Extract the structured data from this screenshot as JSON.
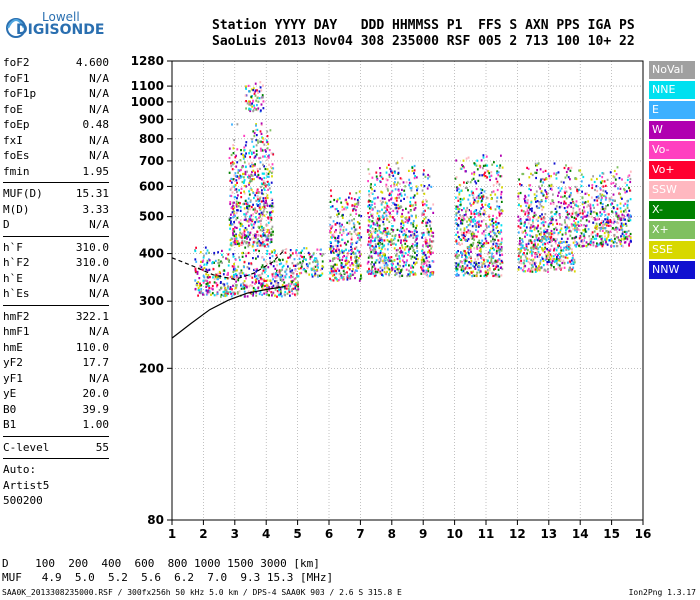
{
  "logo": {
    "line1": "Lowell",
    "line2": "DIGISONDE"
  },
  "header": {
    "line1": "Station YYYY DAY   DDD HHMMSS P1  FFS S AXN PPS IGA PS",
    "line2": "SaoLuis 2013 Nov04 308 235000 RSF 005 2 713 100 10+ 22"
  },
  "params": [
    {
      "label": "foF2",
      "value": "4.600"
    },
    {
      "label": "foF1",
      "value": "N/A"
    },
    {
      "label": "foF1p",
      "value": "N/A"
    },
    {
      "label": "foE",
      "value": "N/A"
    },
    {
      "label": "foEp",
      "value": "0.48"
    },
    {
      "label": "fxI",
      "value": "N/A"
    },
    {
      "label": "foEs",
      "value": "N/A"
    },
    {
      "label": "fmin",
      "value": "1.95"
    },
    {
      "sep": true
    },
    {
      "label": "MUF(D)",
      "value": "15.31"
    },
    {
      "label": "M(D)",
      "value": "3.33"
    },
    {
      "label": "D",
      "value": "N/A"
    },
    {
      "sep": true
    },
    {
      "label": "h`F",
      "value": "310.0"
    },
    {
      "label": "h`F2",
      "value": "310.0"
    },
    {
      "label": "h`E",
      "value": "N/A"
    },
    {
      "label": "h`Es",
      "value": "N/A"
    },
    {
      "sep": true
    },
    {
      "label": "hmF2",
      "value": "322.1"
    },
    {
      "label": "hmF1",
      "value": "N/A"
    },
    {
      "label": "hmE",
      "value": "110.0"
    },
    {
      "label": "yF2",
      "value": "17.7"
    },
    {
      "label": "yF1",
      "value": "N/A"
    },
    {
      "label": "yE",
      "value": "20.0"
    },
    {
      "label": "B0",
      "value": "39.9"
    },
    {
      "label": "B1",
      "value": "1.00"
    },
    {
      "sep": true
    },
    {
      "label": "C-level",
      "value": "55"
    },
    {
      "sep": true
    },
    {
      "label": "Auto:",
      "value": ""
    },
    {
      "label": "Artist5",
      "value": ""
    },
    {
      "label": "500200",
      "value": ""
    }
  ],
  "legend": [
    {
      "label": "NoVal",
      "color": "#a0a0a0"
    },
    {
      "label": "NNE",
      "color": "#00e0f0"
    },
    {
      "label": "E",
      "color": "#3cb0ff"
    },
    {
      "label": "W",
      "color": "#b000b0"
    },
    {
      "label": "Vo-",
      "color": "#ff40c0"
    },
    {
      "label": "Vo+",
      "color": "#ff0030"
    },
    {
      "label": "SSW",
      "color": "#ffb8c0"
    },
    {
      "label": "X-",
      "color": "#008000"
    },
    {
      "label": "X+",
      "color": "#80c060"
    },
    {
      "label": "SSE",
      "color": "#d8d800"
    },
    {
      "label": "NNW",
      "color": "#1010d0"
    }
  ],
  "footer": {
    "line1": "D    100  200  400  600  800 1000 1500 3000 [km]",
    "line2": "MUF   4.9  5.0  5.2  5.6  6.2  7.0  9.3 15.3 [MHz]"
  },
  "credit": "SAA0K_2013308235000.RSF / 300fx256h 50 kHz 5.0 km / DPS-4 SAA0K 903 / 2.6 S 315.8 E",
  "version": "Ion2Png 1.3.17",
  "chart_data": {
    "type": "scatter",
    "title": "",
    "xlabel": "",
    "ylabel": "",
    "xlim": [
      1,
      16
    ],
    "ylim": [
      80,
      1280
    ],
    "x_ticks": [
      "1",
      "2",
      "3",
      "4",
      "5",
      "6",
      "7",
      "8",
      "9",
      "10",
      "11",
      "12",
      "13",
      "14",
      "15",
      "16"
    ],
    "y_ticks": [
      "80",
      "200",
      "300",
      "400",
      "500",
      "600",
      "700",
      "800",
      "900",
      "1000",
      "1100",
      "1280"
    ],
    "y_scale": "log",
    "grid": "dotted",
    "series": [
      {
        "name": "trace_profile",
        "x": [
          1.0,
          1.6,
          2.2,
          2.8,
          3.4,
          4.0,
          4.6,
          4.6
        ],
        "y": [
          240,
          262,
          285,
          302,
          315,
          322,
          328,
          322
        ]
      },
      {
        "name": "virtual_height_trace",
        "x": [
          1.0,
          1.7,
          2.3,
          3.0,
          3.6,
          4.2,
          4.6
        ],
        "y": [
          390,
          370,
          352,
          342,
          355,
          380,
          410
        ]
      }
    ],
    "clusters": [
      {
        "x": [
          1.7,
          5.0
        ],
        "y": [
          310,
          420
        ]
      },
      {
        "x": [
          2.8,
          4.2
        ],
        "y": [
          420,
          900
        ]
      },
      {
        "x": [
          3.3,
          3.9
        ],
        "y": [
          950,
          1150
        ]
      },
      {
        "x": [
          4.9,
          5.8
        ],
        "y": [
          350,
          420
        ]
      },
      {
        "x": [
          6.0,
          7.0
        ],
        "y": [
          340,
          600
        ]
      },
      {
        "x": [
          7.2,
          8.8
        ],
        "y": [
          350,
          720
        ]
      },
      {
        "x": [
          8.9,
          9.3
        ],
        "y": [
          350,
          680
        ]
      },
      {
        "x": [
          10.0,
          11.5
        ],
        "y": [
          350,
          740
        ]
      },
      {
        "x": [
          12.0,
          13.8
        ],
        "y": [
          360,
          700
        ]
      },
      {
        "x": [
          13.8,
          15.6
        ],
        "y": [
          420,
          680
        ]
      }
    ]
  }
}
